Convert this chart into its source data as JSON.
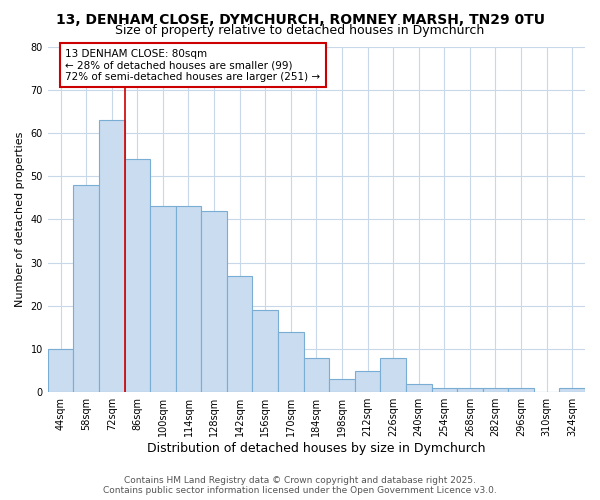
{
  "title1": "13, DENHAM CLOSE, DYMCHURCH, ROMNEY MARSH, TN29 0TU",
  "title2": "Size of property relative to detached houses in Dymchurch",
  "xlabel": "Distribution of detached houses by size in Dymchurch",
  "ylabel": "Number of detached properties",
  "categories": [
    "44sqm",
    "58sqm",
    "72sqm",
    "86sqm",
    "100sqm",
    "114sqm",
    "128sqm",
    "142sqm",
    "156sqm",
    "170sqm",
    "184sqm",
    "198sqm",
    "212sqm",
    "226sqm",
    "240sqm",
    "254sqm",
    "268sqm",
    "282sqm",
    "296sqm",
    "310sqm",
    "324sqm"
  ],
  "values": [
    10,
    48,
    63,
    54,
    43,
    43,
    42,
    27,
    19,
    14,
    8,
    3,
    5,
    8,
    2,
    1,
    1,
    1,
    1,
    0,
    1
  ],
  "bar_color": "#c9dcf0",
  "bar_edge_color": "#7aadd4",
  "vline_x": 2.5,
  "vline_color": "#cc0000",
  "annotation_text": "13 DENHAM CLOSE: 80sqm\n← 28% of detached houses are smaller (99)\n72% of semi-detached houses are larger (251) →",
  "annotation_box_color": "#ffffff",
  "annotation_box_edge": "#cc0000",
  "ylim": [
    0,
    80
  ],
  "yticks": [
    0,
    10,
    20,
    30,
    40,
    50,
    60,
    70,
    80
  ],
  "footer1": "Contains HM Land Registry data © Crown copyright and database right 2025.",
  "footer2": "Contains public sector information licensed under the Open Government Licence v3.0.",
  "bg_color": "#ffffff",
  "plot_bg_color": "#ffffff",
  "grid_color": "#c8d8e8",
  "title1_fontsize": 10,
  "title2_fontsize": 9,
  "xlabel_fontsize": 9,
  "ylabel_fontsize": 8,
  "tick_fontsize": 7,
  "annotation_fontsize": 7.5,
  "footer_fontsize": 6.5
}
